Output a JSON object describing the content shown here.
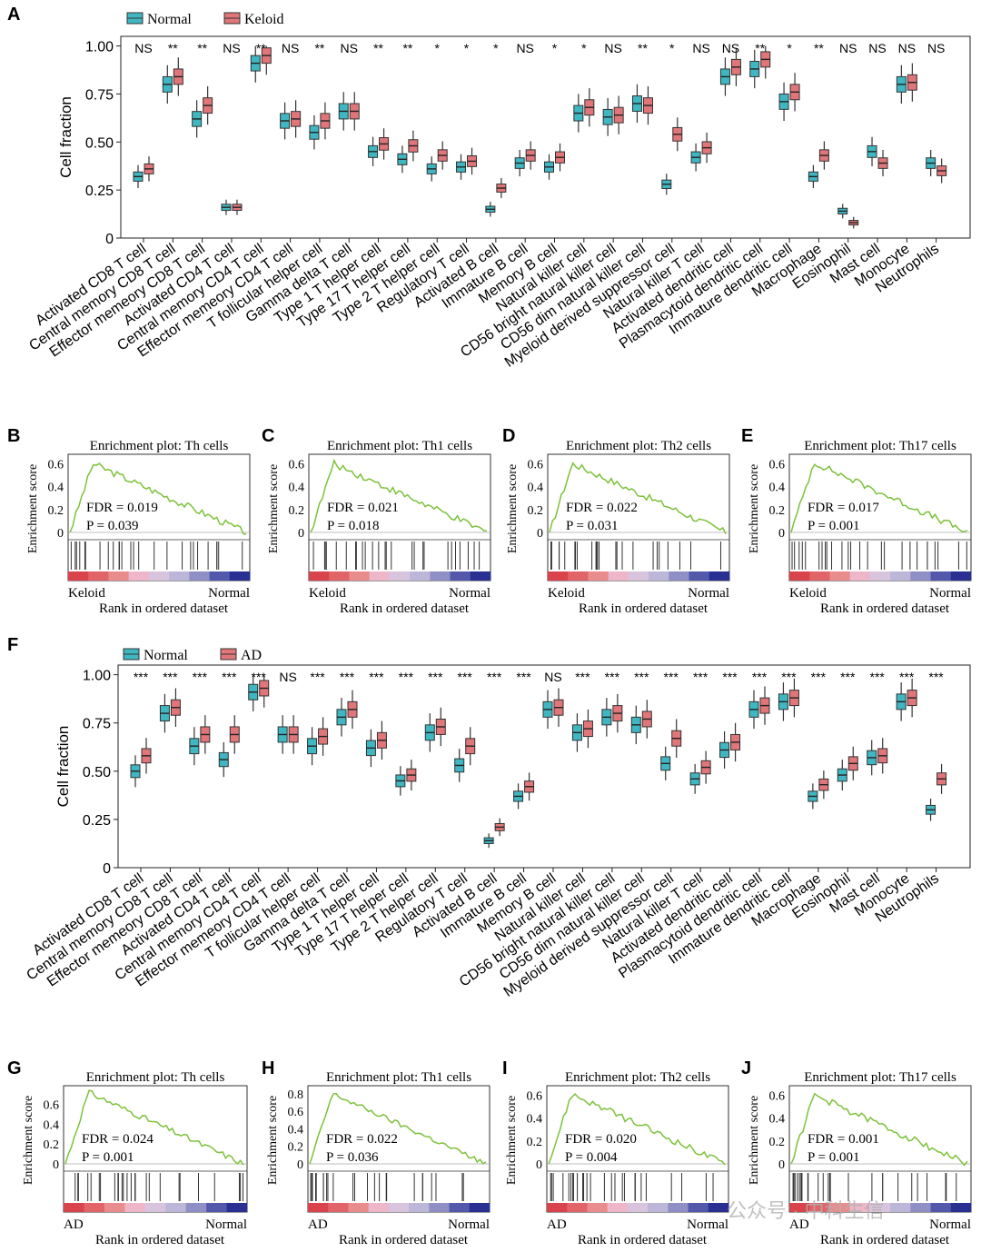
{
  "chart_data": {
    "panel_a": {
      "letter": "A",
      "type": "box",
      "legend": [
        "Normal",
        "Keloid"
      ],
      "colors": {
        "normal": "#3fb7c2",
        "disease": "#e0767a"
      },
      "ylabel": "Cell fraction",
      "yticks": [
        "0",
        "0.25",
        "0.50",
        "0.75",
        "1.00"
      ],
      "ylim": [
        0,
        1.05
      ],
      "categories": [
        "Activated CD8 T cell",
        "Central memory CD8 T cell",
        "Effector memeory CD8 T cell",
        "Activated CD4 T cell",
        "Central memory CD4 T cell",
        "Effector memeory CD4 T cell",
        "T follicular helper cell",
        "Gamma delta T cell",
        "Type 1 T helper cell",
        "Type 17 T helper cell",
        "Type 2 T helper cell",
        "Regulatory T cell",
        "Activated B cell",
        "Immature  B cell",
        "Memory B cell",
        "Natural killer cell",
        "CD56 bright natural killer cell",
        "CD56 dim natural killer cell",
        "Myeloid derived suppressor cell",
        "Natural killer T cell",
        "Activated dendritic cell",
        "Plasmacytoid dendritic cell",
        "Immature dendritic cell",
        "Macrophage",
        "Eosinophil",
        "Mast cell",
        "Monocyte",
        "Neutrophils"
      ],
      "significance": [
        "NS",
        "**",
        "**",
        "NS",
        "**",
        "NS",
        "**",
        "NS",
        "**",
        "**",
        "*",
        "*",
        "*",
        "NS",
        "*",
        "*",
        "NS",
        "**",
        "*",
        "NS",
        "NS",
        "**",
        "*",
        "**",
        "NS",
        "NS",
        "NS",
        "NS"
      ],
      "normal_median": [
        0.32,
        0.8,
        0.62,
        0.16,
        0.91,
        0.61,
        0.55,
        0.66,
        0.45,
        0.41,
        0.36,
        0.37,
        0.15,
        0.39,
        0.37,
        0.65,
        0.63,
        0.7,
        0.28,
        0.42,
        0.84,
        0.88,
        0.71,
        0.32,
        0.14,
        0.45,
        0.8,
        0.39
      ],
      "disease_median": [
        0.36,
        0.84,
        0.69,
        0.16,
        0.95,
        0.62,
        0.61,
        0.66,
        0.49,
        0.48,
        0.43,
        0.4,
        0.26,
        0.43,
        0.42,
        0.68,
        0.64,
        0.69,
        0.54,
        0.47,
        0.89,
        0.93,
        0.76,
        0.43,
        0.08,
        0.39,
        0.81,
        0.35
      ]
    },
    "panel_f": {
      "letter": "F",
      "type": "box",
      "legend": [
        "Normal",
        "AD"
      ],
      "colors": {
        "normal": "#3fb7c2",
        "disease": "#e0767a"
      },
      "ylabel": "Cell fraction",
      "yticks": [
        "0",
        "0.25",
        "0.50",
        "0.75",
        "1.00"
      ],
      "ylim": [
        0,
        1.05
      ],
      "categories": [
        "Activated CD8 T cell",
        "Central memory CD8 T cell",
        "Effector memeory CD8 T cell",
        "Activated CD4 T cell",
        "Central memory CD4 T cell",
        "Effector memeory CD4 T cell",
        "T follicular helper cell",
        "Gamma delta T cell",
        "Type 1 T helper cell",
        "Type 17 T helper cell",
        "Type 2 T helper cell",
        "Regulatory T cell",
        "Activated B cell",
        "Immature  B cell",
        "Memory B cell",
        "Natural killer cell",
        "CD56 bright natural killer cell",
        "CD56 dim natural killer cell",
        "Myeloid derived suppressor cell",
        "Natural killer T cell",
        "Activated dendritic cell",
        "Plasmacytoid dendritic cell",
        "Immature dendritic cell",
        "Macrophage",
        "Eosinophil",
        "Mast cell",
        "Monocyte",
        "Neutrophils"
      ],
      "significance": [
        "***",
        "***",
        "***",
        "***",
        "***",
        "NS",
        "***",
        "***",
        "***",
        "***",
        "***",
        "***",
        "***",
        "***",
        "NS",
        "***",
        "***",
        "***",
        "***",
        "***",
        "***",
        "***",
        "***",
        "***",
        "***",
        "***",
        "***",
        "***"
      ],
      "normal_median": [
        0.5,
        0.8,
        0.63,
        0.56,
        0.91,
        0.69,
        0.63,
        0.78,
        0.62,
        0.45,
        0.7,
        0.53,
        0.14,
        0.37,
        0.82,
        0.7,
        0.78,
        0.74,
        0.54,
        0.46,
        0.61,
        0.82,
        0.86,
        0.37,
        0.48,
        0.57,
        0.86,
        0.3
      ],
      "disease_median": [
        0.58,
        0.83,
        0.69,
        0.69,
        0.93,
        0.69,
        0.68,
        0.82,
        0.66,
        0.48,
        0.73,
        0.63,
        0.21,
        0.42,
        0.83,
        0.72,
        0.8,
        0.77,
        0.67,
        0.52,
        0.65,
        0.84,
        0.88,
        0.43,
        0.54,
        0.58,
        0.88,
        0.46
      ]
    },
    "gsea": [
      {
        "letter": "B",
        "title": "Enrichment plot: Th cells",
        "fdr": "FDR = 0.019",
        "p": "P = 0.039",
        "left": "Keloid",
        "right": "Normal",
        "xlabel": "Rank in ordered dataset",
        "ylabel": "Enrichment score",
        "yticks": [
          "0",
          "0.2",
          "0.4",
          "0.6"
        ],
        "ymax": 0.65,
        "peak": 0.6,
        "end": 0.0
      },
      {
        "letter": "C",
        "title": "Enrichment plot: Th1 cells",
        "fdr": "FDR = 0.021",
        "p": "P = 0.018",
        "left": "Keloid",
        "right": "Normal",
        "xlabel": "Rank in ordered dataset",
        "ylabel": "Enrichment score",
        "yticks": [
          "0",
          "0.2",
          "0.4",
          "0.6"
        ],
        "ymax": 0.65,
        "peak": 0.6,
        "end": 0.0
      },
      {
        "letter": "D",
        "title": "Enrichment plot: Th2 cells",
        "fdr": "FDR = 0.022",
        "p": "P = 0.031",
        "left": "Keloid",
        "right": "Normal",
        "xlabel": "Rank in ordered dataset",
        "ylabel": "Enrichment score",
        "yticks": [
          "0",
          "0.2",
          "0.4",
          "0.6"
        ],
        "ymax": 0.65,
        "peak": 0.6,
        "end": 0.0
      },
      {
        "letter": "E",
        "title": "Enrichment plot: Th17 cells",
        "fdr": "FDR = 0.017",
        "p": "P = 0.001",
        "left": "Keloid",
        "right": "Normal",
        "xlabel": "Rank in ordered dataset",
        "ylabel": "Enrichment score",
        "yticks": [
          "0",
          "0.2",
          "0.4",
          "0.6"
        ],
        "ymax": 0.65,
        "peak": 0.61,
        "end": 0.0
      },
      {
        "letter": "G",
        "title": "Enrichment plot: Th cells",
        "fdr": "FDR = 0.024",
        "p": "P = 0.001",
        "left": "AD",
        "right": "Normal",
        "xlabel": "Rank in ordered dataset",
        "ylabel": "Enrichment score",
        "yticks": [
          "0",
          "0.2",
          "0.4",
          "0.6"
        ],
        "ymax": 0.75,
        "peak": 0.72,
        "end": 0.0
      },
      {
        "letter": "H",
        "title": "Enrichment plot: Th1 cells",
        "fdr": "FDR = 0.022",
        "p": "P = 0.036",
        "left": "AD",
        "right": "Normal",
        "xlabel": "Rank in ordered dataset",
        "ylabel": "Enrichment score",
        "yticks": [
          "0",
          "0.2",
          "0.4",
          "0.6",
          "0.8"
        ],
        "ymax": 0.85,
        "peak": 0.8,
        "end": 0.0
      },
      {
        "letter": "I",
        "title": "Enrichment plot: Th2 cells",
        "fdr": "FDR = 0.020",
        "p": "P = 0.004",
        "left": "AD",
        "right": "Normal",
        "xlabel": "Rank in ordered dataset",
        "ylabel": "Enrichment score",
        "yticks": [
          "0",
          "0.2",
          "0.4",
          "0.6"
        ],
        "ymax": 0.65,
        "peak": 0.61,
        "end": 0.0
      },
      {
        "letter": "J",
        "title": "Enrichment plot: Th17 cells",
        "fdr": "FDR = 0.001",
        "p": "P = 0.001",
        "left": "AD",
        "right": "Normal",
        "xlabel": "Rank in ordered dataset",
        "ylabel": "Enrichment score",
        "yticks": [
          "0",
          "0.2",
          "0.4",
          "0.6"
        ],
        "ymax": 0.65,
        "peak": 0.6,
        "end": 0.0
      }
    ]
  },
  "watermark": "公众号 · 中科生信"
}
